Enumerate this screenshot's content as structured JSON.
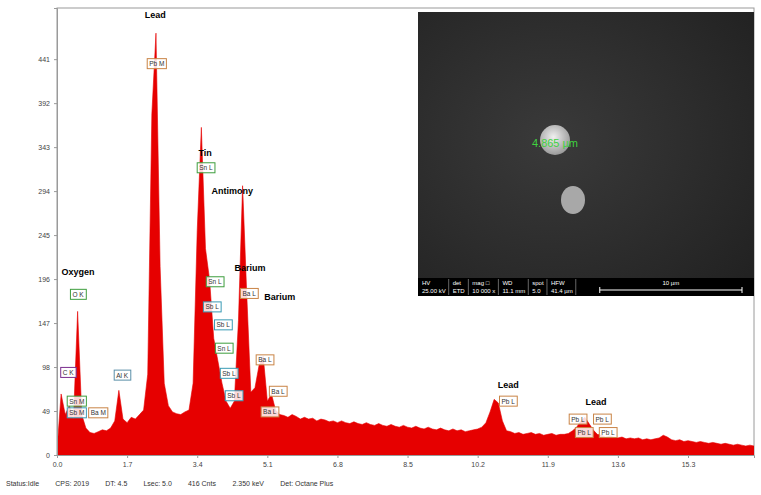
{
  "chart_data": {
    "type": "area",
    "color": "#e60000",
    "grid": false,
    "xlim": [
      0,
      16.9
    ],
    "ylim": [
      0,
      498
    ],
    "xticks": [
      {
        "value": 0,
        "label": "0.0"
      },
      1.7,
      3.4,
      5.1,
      6.8,
      8.5,
      10.2,
      11.9,
      13.6,
      15.3
    ],
    "yticks": [
      0,
      49,
      98,
      147,
      196,
      245,
      294,
      343,
      392,
      441
    ],
    "x": [
      0.0,
      0.1,
      0.2,
      0.3,
      0.4,
      0.5,
      0.6,
      0.7,
      0.8,
      0.9,
      1.0,
      1.1,
      1.2,
      1.3,
      1.4,
      1.5,
      1.6,
      1.7,
      1.8,
      1.9,
      2.0,
      2.1,
      2.2,
      2.3,
      2.4,
      2.5,
      2.6,
      2.7,
      2.8,
      2.9,
      3.0,
      3.1,
      3.2,
      3.3,
      3.4,
      3.5,
      3.6,
      3.7,
      3.8,
      3.9,
      4.0,
      4.1,
      4.2,
      4.3,
      4.4,
      4.5,
      4.6,
      4.7,
      4.8,
      4.9,
      5.0,
      5.1,
      5.2,
      5.3,
      5.4,
      5.5,
      5.6,
      5.7,
      5.8,
      5.9,
      6.0,
      6.1,
      6.2,
      6.3,
      6.4,
      6.5,
      6.6,
      6.7,
      6.8,
      6.9,
      7.0,
      7.1,
      7.2,
      7.3,
      7.4,
      7.5,
      7.6,
      7.7,
      7.8,
      7.9,
      8.0,
      8.1,
      8.2,
      8.3,
      8.4,
      8.5,
      8.6,
      8.7,
      8.8,
      8.9,
      9.0,
      9.1,
      9.2,
      9.3,
      9.4,
      9.5,
      9.6,
      9.7,
      9.8,
      9.9,
      10.0,
      10.1,
      10.2,
      10.3,
      10.4,
      10.5,
      10.6,
      10.7,
      10.8,
      10.9,
      11.0,
      11.1,
      11.2,
      11.3,
      11.4,
      11.5,
      11.6,
      11.7,
      11.8,
      11.9,
      12.0,
      12.1,
      12.2,
      12.3,
      12.4,
      12.5,
      12.6,
      12.7,
      12.8,
      12.9,
      13.0,
      13.1,
      13.2,
      13.3,
      13.4,
      13.5,
      13.6,
      13.7,
      13.8,
      13.9,
      14.0,
      14.1,
      14.2,
      14.3,
      14.4,
      14.5,
      14.6,
      14.7,
      14.8,
      14.9,
      15.0,
      15.1,
      15.2,
      15.3,
      15.4,
      15.5,
      15.6,
      15.7,
      15.8,
      15.9,
      16.0,
      16.1,
      16.2,
      16.3,
      16.4,
      16.5,
      16.6,
      16.7,
      16.8,
      16.9
    ],
    "values": [
      5,
      68,
      45,
      55,
      40,
      160,
      45,
      30,
      25,
      24,
      26,
      28,
      27,
      30,
      38,
      72,
      40,
      36,
      42,
      40,
      45,
      50,
      90,
      380,
      470,
      210,
      80,
      55,
      48,
      46,
      45,
      48,
      50,
      80,
      250,
      365,
      230,
      195,
      130,
      105,
      80,
      60,
      52,
      60,
      150,
      300,
      180,
      70,
      75,
      100,
      110,
      60,
      68,
      50,
      45,
      44,
      42,
      45,
      43,
      40,
      42,
      40,
      41,
      38,
      40,
      39,
      37,
      38,
      36,
      38,
      36,
      35,
      37,
      35,
      34,
      36,
      34,
      33,
      35,
      33,
      32,
      34,
      32,
      31,
      33,
      31,
      30,
      32,
      30,
      29,
      31,
      29,
      28,
      30,
      28,
      27,
      29,
      27,
      28,
      26,
      27,
      28,
      29,
      31,
      36,
      48,
      62,
      58,
      38,
      27,
      26,
      24,
      25,
      23,
      24,
      25,
      23,
      24,
      22,
      23,
      24,
      22,
      23,
      23,
      24,
      27,
      31,
      38,
      42,
      35,
      28,
      23,
      22,
      20,
      21,
      20,
      19,
      20,
      18,
      19,
      18,
      19,
      17,
      18,
      17,
      18,
      19,
      22,
      20,
      17,
      16,
      17,
      15,
      16,
      15,
      14,
      15,
      14,
      13,
      14,
      13,
      12,
      13,
      12,
      11,
      12,
      11,
      10,
      11,
      10
    ],
    "annotations": [
      {
        "text": "Lead",
        "x": 2.38,
        "y": 490
      },
      {
        "text": "Tin",
        "x": 3.59,
        "y": 337
      },
      {
        "text": "Antimony",
        "x": 4.25,
        "y": 294
      },
      {
        "text": "Barium",
        "x": 4.68,
        "y": 208
      },
      {
        "text": "Barium",
        "x": 5.4,
        "y": 176
      },
      {
        "text": "Oxygen",
        "x": 0.51,
        "y": 204
      },
      {
        "text": "Lead",
        "x": 10.94,
        "y": 78
      },
      {
        "text": "Lead",
        "x": 13.07,
        "y": 59
      }
    ],
    "peak_markers": [
      {
        "label": "C K",
        "x": 0.27,
        "y": 92,
        "color": "#7b2d8e"
      },
      {
        "label": "O K",
        "x": 0.51,
        "y": 179,
        "color": "#3e9e3e"
      },
      {
        "label": "Sn M",
        "x": 0.48,
        "y": 60,
        "color": "#3e9e3e"
      },
      {
        "label": "Sb M",
        "x": 0.48,
        "y": 47,
        "color": "#3a9bb5"
      },
      {
        "label": "Ba M",
        "x": 1.0,
        "y": 47,
        "color": "#c98446"
      },
      {
        "label": "Al K",
        "x": 1.58,
        "y": 89,
        "color": "#5a8fa8"
      },
      {
        "label": "Pb M",
        "x": 2.42,
        "y": 436,
        "color": "#c98446"
      },
      {
        "label": "Sn L",
        "x": 3.61,
        "y": 320,
        "color": "#3e9e3e"
      },
      {
        "label": "Sn L",
        "x": 3.83,
        "y": 193,
        "color": "#3e9e3e"
      },
      {
        "label": "Sb L",
        "x": 3.76,
        "y": 165,
        "color": "#3a9bb5"
      },
      {
        "label": "Sb L",
        "x": 4.03,
        "y": 145,
        "color": "#3a9bb5"
      },
      {
        "label": "Sn L",
        "x": 4.05,
        "y": 119,
        "color": "#3e9e3e"
      },
      {
        "label": "Sb L",
        "x": 4.17,
        "y": 91,
        "color": "#3a9bb5"
      },
      {
        "label": "Sb L",
        "x": 4.29,
        "y": 66,
        "color": "#3a9bb5"
      },
      {
        "label": "Ba L",
        "x": 4.66,
        "y": 180,
        "color": "#c98446"
      },
      {
        "label": "Ba L",
        "x": 5.04,
        "y": 106,
        "color": "#c98446"
      },
      {
        "label": "Ba L",
        "x": 5.36,
        "y": 71,
        "color": "#c98446"
      },
      {
        "label": "Ba L",
        "x": 5.16,
        "y": 48,
        "color": "#c98446"
      },
      {
        "label": "Pb L",
        "x": 10.94,
        "y": 60,
        "color": "#c98446"
      },
      {
        "label": "Pb L",
        "x": 12.63,
        "y": 40,
        "color": "#c98446"
      },
      {
        "label": "Pb L",
        "x": 13.22,
        "y": 40,
        "color": "#c98446"
      },
      {
        "label": "Pb L",
        "x": 12.78,
        "y": 25,
        "color": "#c98446"
      },
      {
        "label": "Pb L",
        "x": 13.36,
        "y": 25,
        "color": "#c98446"
      }
    ]
  },
  "inset_image": {
    "measurement": "4.865 µm",
    "info": [
      {
        "label": "HV",
        "value": "25.00 kV"
      },
      {
        "label": "det",
        "value": "ETD"
      },
      {
        "label": "mag □",
        "value": "10 000 x"
      },
      {
        "label": "WD",
        "value": "11.1 mm"
      },
      {
        "label": "spot",
        "value": "5.0"
      },
      {
        "label": "HFW",
        "value": "41.4 µm"
      }
    ],
    "scale_bar": "10 µm"
  },
  "status_bar": [
    "Status:Idle",
    "CPS: 2019",
    "DT: 4.5",
    "Lsec: 5.0",
    "416 Cnts",
    "2.350 keV",
    "Det: Octane Plus"
  ]
}
